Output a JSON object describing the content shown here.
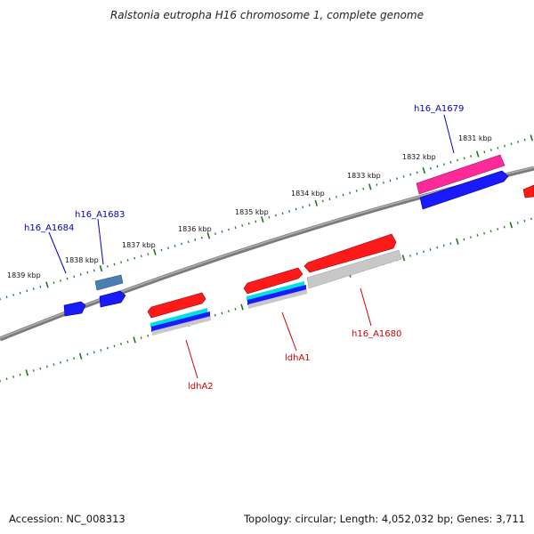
{
  "title": "Ralstonia eutropha H16 chromosome 1, complete genome",
  "ruler": {
    "ticks": [
      "1831 kbp",
      "1832 kbp",
      "1833 kbp",
      "1834 kbp",
      "1835 kbp",
      "1836 kbp",
      "1837 kbp",
      "1838 kbp",
      "1839 kbp"
    ]
  },
  "gene_labels": [
    {
      "text": "h16_A1679",
      "color": "#0000c0"
    },
    {
      "text": "h16_A1683",
      "color": "#0000c0"
    },
    {
      "text": "h16_A1684",
      "color": "#0000c0"
    },
    {
      "text": "ldhA2",
      "color": "#d00000"
    },
    {
      "text": "ldhA1",
      "color": "#d00000"
    },
    {
      "text": "h16_A1680",
      "color": "#d00000"
    }
  ],
  "colors": {
    "backbone": "#808080",
    "tick": "#1a7a1a",
    "red": "#ff1a1a",
    "blue": "#1a1aff",
    "pink": "#ff2a9a",
    "steel": "#4a7fb0",
    "cyan": "#00e0e0",
    "gray": "#c8c8c8"
  },
  "footer": {
    "accession": "Accession: NC_008313",
    "summary": "Topology: circular; Length: 4,052,032 bp; Genes: 3,711"
  }
}
